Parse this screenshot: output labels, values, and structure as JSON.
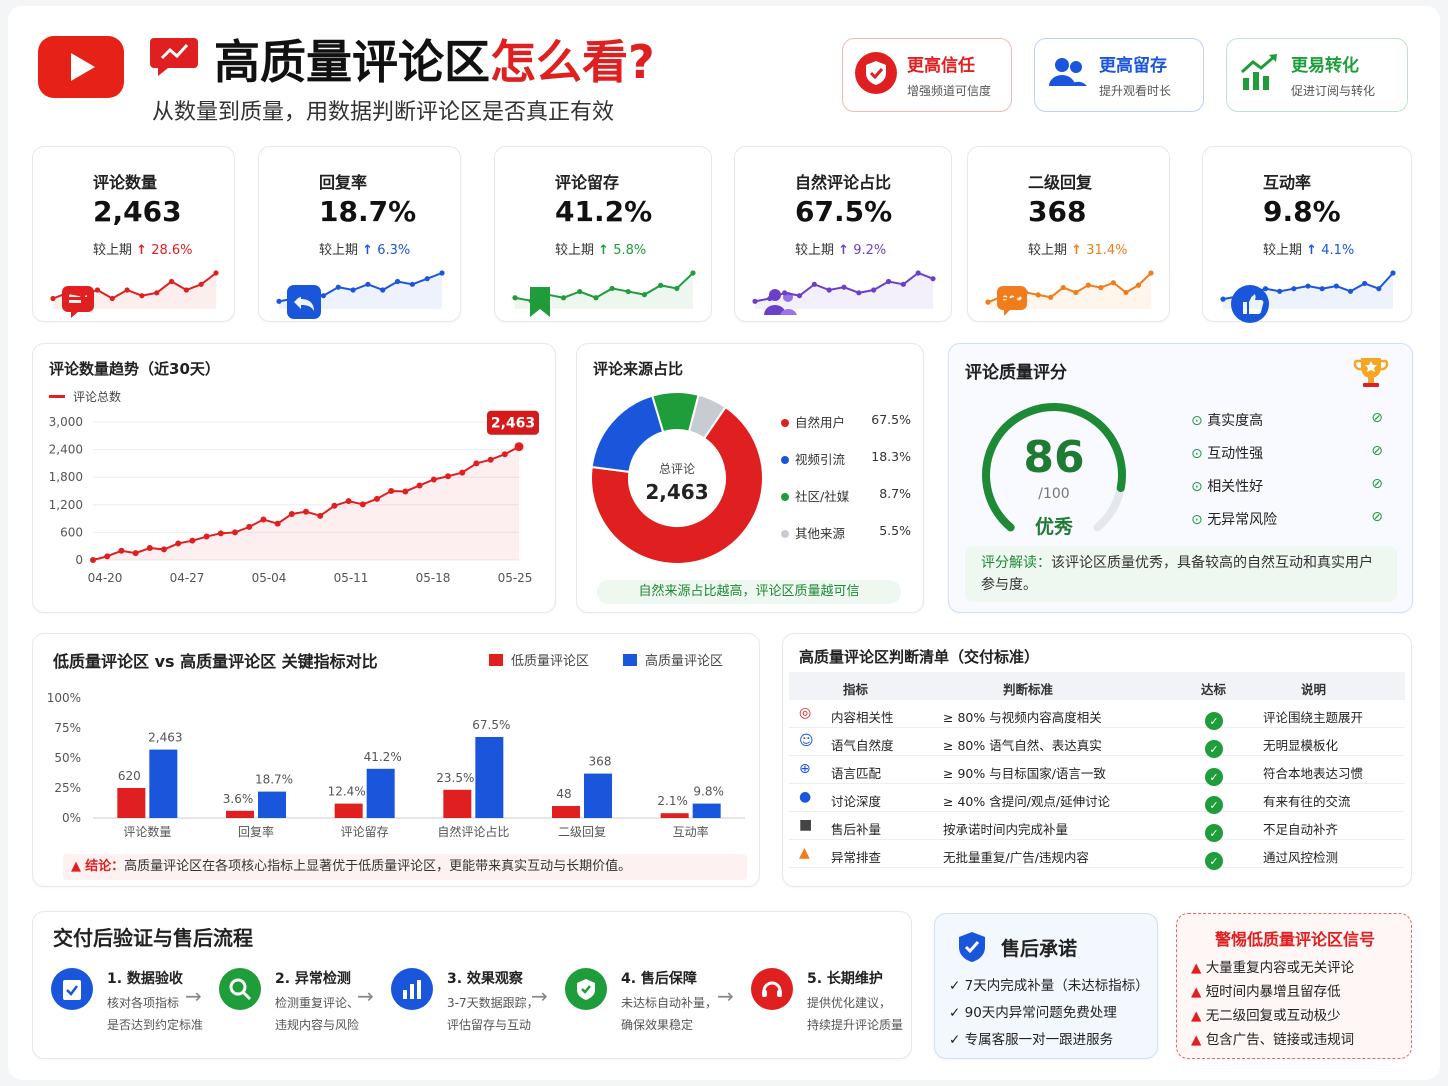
{
  "header": {
    "title_a": "高质量评论区",
    "title_b": "怎么看?",
    "subtitle": "从数量到质量，用数据判断评论区是否真正有效"
  },
  "badges": [
    {
      "title": "更高信任",
      "desc": "增强频道可信度",
      "color": "#e02020"
    },
    {
      "title": "更高留存",
      "desc": "提升观看时长",
      "color": "#1a56db"
    },
    {
      "title": "更易转化",
      "desc": "促进订阅与转化",
      "color": "#1f9d3a"
    }
  ],
  "kpis": [
    {
      "label": "评论数量",
      "value": "2,463",
      "cmp": "较上期",
      "delta": "28.6%",
      "color": "#e02020",
      "spark": [
        3,
        5,
        4,
        6,
        3,
        6,
        4,
        5,
        9,
        6,
        8,
        12
      ]
    },
    {
      "label": "回复率",
      "value": "18.7%",
      "cmp": "较上期",
      "delta": "6.3%",
      "color": "#1a56db",
      "spark": [
        2,
        3,
        5,
        4,
        7,
        6,
        8,
        6,
        9,
        8,
        10,
        12
      ]
    },
    {
      "label": "评论留存",
      "value": "41.2%",
      "cmp": "较上期",
      "delta": "5.8%",
      "color": "#1f9d3a",
      "spark": [
        3,
        2,
        4,
        3,
        5,
        3,
        6,
        5,
        4,
        7,
        6,
        11
      ]
    },
    {
      "label": "自然评论占比",
      "value": "67.5%",
      "cmp": "较上期",
      "delta": "9.2%",
      "color": "#6b3fc7",
      "spark": [
        2,
        3,
        5,
        4,
        8,
        6,
        7,
        5,
        6,
        9,
        8,
        12,
        10
      ]
    },
    {
      "label": "二级回复",
      "value": "368",
      "cmp": "较上期",
      "delta": "31.4%",
      "color": "#f07c1b",
      "spark": [
        2,
        4,
        3,
        6,
        5,
        4,
        8,
        6,
        9,
        8,
        10,
        6,
        9,
        14
      ]
    },
    {
      "label": "互动率",
      "value": "9.8%",
      "cmp": "较上期",
      "delta": "4.1%",
      "color": "#1a56db",
      "spark": [
        3,
        4,
        5,
        7,
        6,
        7,
        8,
        7,
        8,
        6,
        9,
        7,
        13
      ]
    }
  ],
  "trend": {
    "title": "评论数量趋势（近30天）",
    "legend": "评论总数",
    "yticks": [
      "3,000",
      "2,400",
      "1,800",
      "1,200",
      "600",
      "0"
    ],
    "xticks": [
      "04-20",
      "04-27",
      "05-04",
      "05-11",
      "05-18",
      "05-25"
    ],
    "last_label": "2,463"
  },
  "chart_data": {
    "type": "line",
    "title": "评论数量趋势（近30天）",
    "series": [
      {
        "name": "评论总数",
        "values": [
          0,
          80,
          200,
          150,
          260,
          230,
          360,
          420,
          510,
          580,
          600,
          720,
          880,
          790,
          1000,
          1050,
          960,
          1180,
          1280,
          1210,
          1330,
          1500,
          1490,
          1620,
          1750,
          1820,
          1900,
          2100,
          2180,
          2300,
          2463
        ]
      }
    ],
    "ylim": [
      0,
      3000
    ]
  },
  "source": {
    "title": "评论来源占比",
    "center_label": "总评论",
    "center_value": "2,463",
    "items": [
      {
        "name": "自然用户",
        "pct": "67.5%",
        "value": 67.5,
        "color": "#e02020"
      },
      {
        "name": "视频引流",
        "pct": "18.3%",
        "value": 18.3,
        "color": "#1a56db"
      },
      {
        "name": "社区/社媒",
        "pct": "8.7%",
        "value": 8.7,
        "color": "#1f9d3a"
      },
      {
        "name": "其他来源",
        "pct": "5.5%",
        "value": 5.5,
        "color": "#c7ccd3"
      }
    ],
    "note": "自然来源占比越高，评论区质量越可信"
  },
  "score": {
    "title": "评论质量评分",
    "value": "86",
    "max": "/100",
    "grade": "优秀",
    "level": 0.86,
    "checks": [
      "真实度高",
      "互动性强",
      "相关性好",
      "无异常风险"
    ],
    "note_a": "评分解读：",
    "note_b": "该评论区质量优秀，具备较高的自然互动和真实用户参与度。"
  },
  "compare": {
    "title": "低质量评论区 vs 高质量评论区 关键指标对比",
    "legend_low": "低质量评论区",
    "legend_high": "高质量评论区",
    "yticks": [
      "100%",
      "75%",
      "50%",
      "25%",
      "0%"
    ],
    "groups": [
      {
        "name": "评论数量",
        "low_label": "620",
        "high_label": "2,463",
        "low": 25,
        "high": 57
      },
      {
        "name": "回复率",
        "low_label": "3.6%",
        "high_label": "18.7%",
        "low": 6,
        "high": 22
      },
      {
        "name": "评论留存",
        "low_label": "12.4%",
        "high_label": "41.2%",
        "low": 12,
        "high": 41
      },
      {
        "name": "自然评论占比",
        "low_label": "23.5%",
        "high_label": "67.5%",
        "low": 23.5,
        "high": 67.5
      },
      {
        "name": "二级回复",
        "low_label": "48",
        "high_label": "368",
        "low": 10,
        "high": 37
      },
      {
        "name": "互动率",
        "low_label": "2.1%",
        "high_label": "9.8%",
        "low": 4,
        "high": 12
      }
    ],
    "conclusion_a": "结论：",
    "conclusion_b": "高质量评论区在各项核心指标上显著优于低质量评论区，更能带来真实互动与长期价值。"
  },
  "checklist": {
    "title": "高质量评论区判断清单（交付标准）",
    "cols": [
      "指标",
      "判断标准",
      "达标",
      "说明"
    ],
    "rows": [
      {
        "icon": "target-icon",
        "name": "内容相关性",
        "std": "≥ 80% 与视频内容高度相关",
        "note": "评论围绕主题展开",
        "color": "#e02020"
      },
      {
        "icon": "smile-icon",
        "name": "语气自然度",
        "std": "≥ 80% 语气自然、表达真实",
        "note": "无明显模板化",
        "color": "#1a56db"
      },
      {
        "icon": "globe-icon",
        "name": "语言匹配",
        "std": "≥ 90% 与目标国家/语言一致",
        "note": "符合本地表达习惯",
        "color": "#1a56db"
      },
      {
        "icon": "chat-icon",
        "name": "讨论深度",
        "std": "≥ 40% 含提问/观点/延伸讨论",
        "note": "有来有往的交流",
        "color": "#1a56db"
      },
      {
        "icon": "box-icon",
        "name": "售后补量",
        "std": "按承诺时间内完成补量",
        "note": "不足自动补齐",
        "color": "#444"
      },
      {
        "icon": "warning-icon",
        "name": "异常排查",
        "std": "无批量重复/广告/违规内容",
        "note": "通过风控检测",
        "color": "#f07c1b"
      }
    ]
  },
  "process": {
    "title": "交付后验证与售后流程",
    "steps": [
      {
        "h": "1. 数据验收",
        "d1": "核对各项指标",
        "d2": "是否达到约定标准",
        "color": "#1a56db"
      },
      {
        "h": "2. 异常检测",
        "d1": "检测重复评论、",
        "d2": "违规内容与风险",
        "color": "#1f9d3a"
      },
      {
        "h": "3. 效果观察",
        "d1": "3-7天数据跟踪，",
        "d2": "评估留存与互动",
        "color": "#1a56db"
      },
      {
        "h": "4. 售后保障",
        "d1": "未达标自动补量，",
        "d2": "确保效果稳定",
        "color": "#1f9d3a"
      },
      {
        "h": "5. 长期维护",
        "d1": "提供优化建议，",
        "d2": "持续提升评论质量",
        "color": "#e02020"
      }
    ]
  },
  "promise": {
    "title": "售后承诺",
    "items": [
      "7天内完成补量（未达标指标）",
      "90天内异常问题免费处理",
      "专属客服一对一跟进服务"
    ]
  },
  "warning": {
    "title": "警惕低质量评论区信号",
    "items": [
      "大量重复内容或无关评论",
      "短时间内暴增且留存低",
      "无二级回复或互动极少",
      "包含广告、链接或违规词"
    ]
  }
}
